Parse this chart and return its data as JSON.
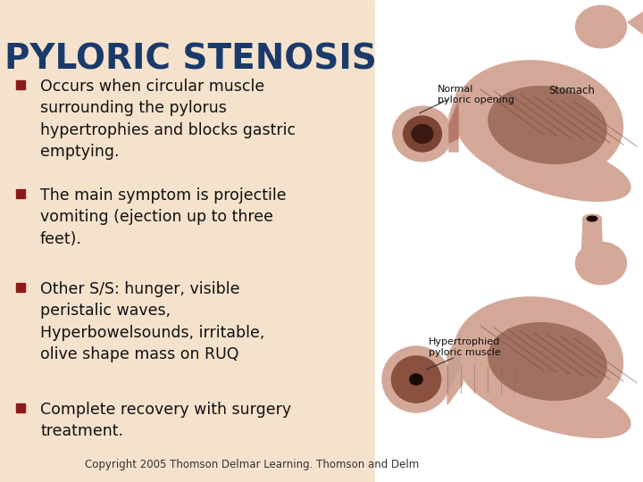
{
  "title": "PYLORIC STENOSIS",
  "title_color": "#1a3a6b",
  "title_fontsize": 28,
  "bg_color": "#f5e2cc",
  "right_bg": "#ffffff",
  "bullet_color": "#8b1a1a",
  "text_color": "#111111",
  "bullet_fontsize": 12.5,
  "bullets": [
    "Occurs when circular muscle\nsurrounding the pylorus\nhypertrophies and blocks gastric\nemptying.",
    "The main symptom is projectile\nvomiting (ejection up to three\nfeet).",
    "Other S/S: hunger, visible\nperistalic waves,\nHyperbowelsounds, irritable,\nolive shape mass on RUQ",
    "Complete recovery with surgery\ntreatment."
  ],
  "footer": "Copyright 2005 Thomson Delmar Learning. Thomson and Delm",
  "footer_fontsize": 8.5,
  "label_normal_opening": "Normal\npyloric opening",
  "label_stomach": "Stomach",
  "label_hypertrophied": "Hypertrophied\npyloric muscle",
  "stomach_color_outer": "#d4a898",
  "stomach_color_mid": "#c49080",
  "stomach_color_inner": "#a07060",
  "stomach_color_dark": "#7a4535",
  "stomach_color_cut": "#b87868",
  "white": "#ffffff"
}
